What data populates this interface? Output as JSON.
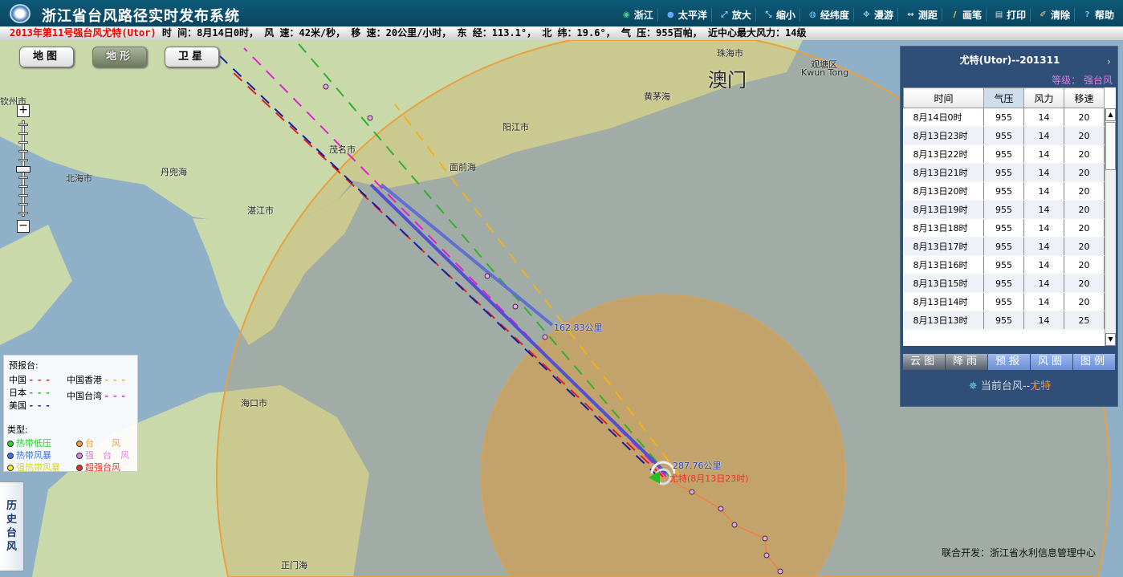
{
  "header": {
    "title": "浙江省台风路径实时发布系统",
    "toolbar": [
      {
        "label": "浙江",
        "icon": "globe-icon"
      },
      {
        "label": "太平洋",
        "icon": "earth-icon"
      },
      {
        "label": "放大",
        "icon": "zoom-in-icon"
      },
      {
        "label": "缩小",
        "icon": "zoom-out-icon"
      },
      {
        "label": "经纬度",
        "icon": "grid-icon"
      },
      {
        "label": "漫游",
        "icon": "pan-icon"
      },
      {
        "label": "测距",
        "icon": "measure-icon"
      },
      {
        "label": "画笔",
        "icon": "pen-icon"
      },
      {
        "label": "打印",
        "icon": "print-icon"
      },
      {
        "label": "清除",
        "icon": "broom-icon"
      },
      {
        "label": "帮助",
        "icon": "help-icon"
      }
    ]
  },
  "infobar": {
    "name": "2013年第11号强台风尤特(Utor)",
    "details": " 时 间：8月14日0时， 风 速：42米/秒， 移 速：20公里/小时， 东 经：113.1°， 北 纬：19.6°， 气 压：955百帕， 近中心最大风力：14级"
  },
  "map": {
    "buttons": [
      "地图",
      "地形",
      "卫星"
    ],
    "active_button": "地形",
    "places": [
      "钦州市",
      "北海市",
      "丹兜海",
      "湛江市",
      "茂名市",
      "阳江市",
      "面前海",
      "珠海市",
      "澳门",
      "观塘区",
      "Kwun Tong",
      "黄茅海",
      "海口市",
      "正门海"
    ],
    "distance_labels": [
      "162.83公里",
      "287.76公里"
    ],
    "center_label": "尤特(8月13日23时)",
    "legend": {
      "forecast_title": "预报台:",
      "forecasters": [
        {
          "name": "中国",
          "color": "#e02020"
        },
        {
          "name": "中国香港",
          "color": "#f0b020"
        },
        {
          "name": "日本",
          "color": "#30b030"
        },
        {
          "name": "中国台湾",
          "color": "#e020d0"
        },
        {
          "name": "美国",
          "color": "#1020a0"
        }
      ],
      "type_title": "类型:",
      "types": [
        {
          "name": "热带低压",
          "color": "#30d030"
        },
        {
          "name": "台　　风",
          "color": "#f0a030"
        },
        {
          "name": "热带风暴",
          "color": "#4070e0"
        },
        {
          "name": "强　台　风",
          "color": "#e080e0"
        },
        {
          "name": "强热带风暴",
          "color": "#f0f020"
        },
        {
          "name": "超强台风",
          "color": "#e03030"
        }
      ]
    },
    "history_button": "历史台风",
    "credit": "联合开发：浙江省水利信息管理中心"
  },
  "panel": {
    "title": "尤特(Utor)--201311",
    "level": "等级： 强台风",
    "columns": [
      "时间",
      "气压",
      "风力",
      "移速"
    ],
    "rows": [
      [
        "8月14日0时",
        "955",
        "14",
        "20"
      ],
      [
        "8月13日23时",
        "955",
        "14",
        "20"
      ],
      [
        "8月13日22时",
        "955",
        "14",
        "20"
      ],
      [
        "8月13日21时",
        "955",
        "14",
        "20"
      ],
      [
        "8月13日20时",
        "955",
        "14",
        "20"
      ],
      [
        "8月13日19时",
        "955",
        "14",
        "20"
      ],
      [
        "8月13日18时",
        "955",
        "14",
        "20"
      ],
      [
        "8月13日17时",
        "955",
        "14",
        "20"
      ],
      [
        "8月13日16时",
        "955",
        "14",
        "20"
      ],
      [
        "8月13日15时",
        "955",
        "14",
        "20"
      ],
      [
        "8月13日14时",
        "955",
        "14",
        "20"
      ],
      [
        "8月13日13时",
        "955",
        "14",
        "25"
      ]
    ],
    "tabs": [
      "云图",
      "降雨",
      "预报",
      "风圈",
      "图例"
    ],
    "current_prefix": "当前台风--",
    "current_name": "尤特"
  }
}
